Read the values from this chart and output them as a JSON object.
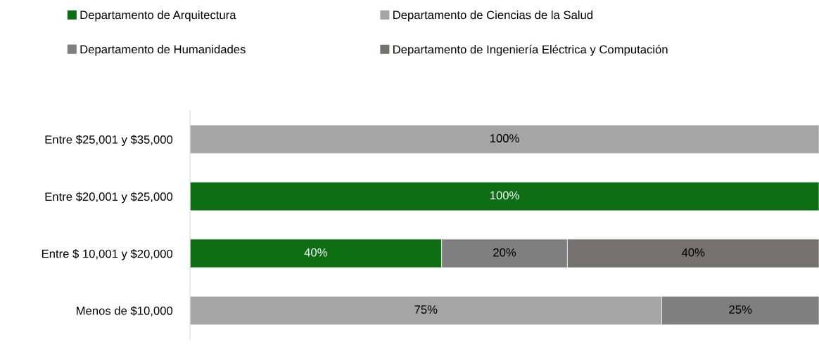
{
  "chart_data": {
    "type": "bar",
    "orientation": "horizontal",
    "stacked": true,
    "categories": [
      "Entre $25,001 y $35,000",
      "Entre $20,001 y $25,000",
      "Entre $ 10,001 y $20,000",
      "Menos de $10,000"
    ],
    "series": [
      {
        "name": "Departamento de Arquitectura",
        "color": "#0e6e14",
        "values": [
          null,
          100,
          40,
          null
        ],
        "value_labels": [
          null,
          "100%",
          "40%",
          null
        ]
      },
      {
        "name": "Departamento de Ciencias de la Salud",
        "color": "#a5a5a5",
        "values": [
          100,
          null,
          null,
          75
        ],
        "value_labels": [
          "100%",
          null,
          null,
          "75%"
        ]
      },
      {
        "name": "Departamento de Humanidades",
        "color": "#7f7f7f",
        "values": [
          null,
          null,
          20,
          25
        ],
        "value_labels": [
          null,
          null,
          "20%",
          "25%"
        ]
      },
      {
        "name": "Departamento de Ingeniería Eléctrica y Computación",
        "color": "#767171",
        "values": [
          null,
          null,
          40,
          null
        ],
        "value_labels": [
          null,
          null,
          "40%",
          null
        ]
      }
    ],
    "legend": "top",
    "grid": false,
    "tick_labels": "y"
  }
}
